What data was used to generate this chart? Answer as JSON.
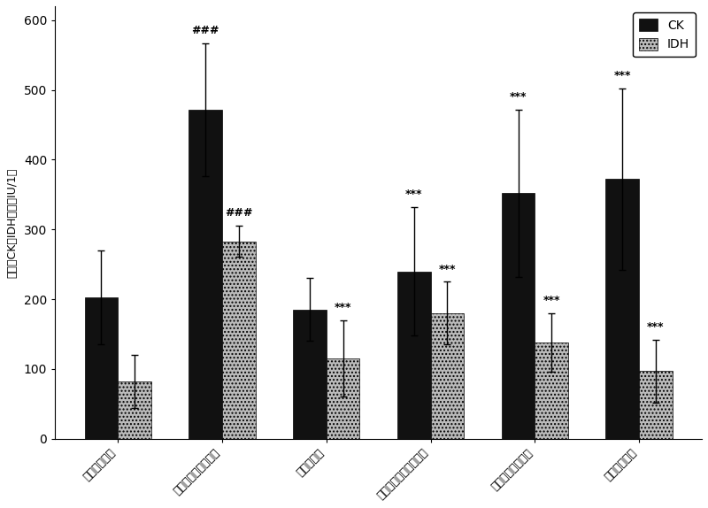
{
  "categories": [
    "假手术对照组",
    "急性心肌缺血模型组",
    "硝酸甘油组",
    "小葱提取物纳米乳胶组",
    "小提取物纳米乳组",
    "小葱提取物组"
  ],
  "ck_values": [
    203,
    472,
    185,
    240,
    352,
    372
  ],
  "idh_values": [
    82,
    283,
    115,
    180,
    138,
    97
  ],
  "ck_errors": [
    67,
    95,
    45,
    92,
    120,
    130
  ],
  "idh_errors": [
    38,
    22,
    55,
    45,
    42,
    45
  ],
  "ck_color": "#111111",
  "idh_color": "#bbbbbb",
  "idh_hatch": "....",
  "ylabel": "血清中CK和IDH水平（IU/1）",
  "ylim": [
    0,
    620
  ],
  "yticks": [
    0,
    100,
    200,
    300,
    400,
    500,
    600
  ],
  "bar_width": 0.32,
  "ck_annotations": [
    "",
    "###",
    "",
    "***",
    "***",
    "***"
  ],
  "idh_annotations": [
    "",
    "###",
    "***",
    "***",
    "***",
    "***"
  ],
  "legend_ck": "CK",
  "legend_idh": "IDH",
  "fig_width": 8.0,
  "fig_height": 5.74
}
